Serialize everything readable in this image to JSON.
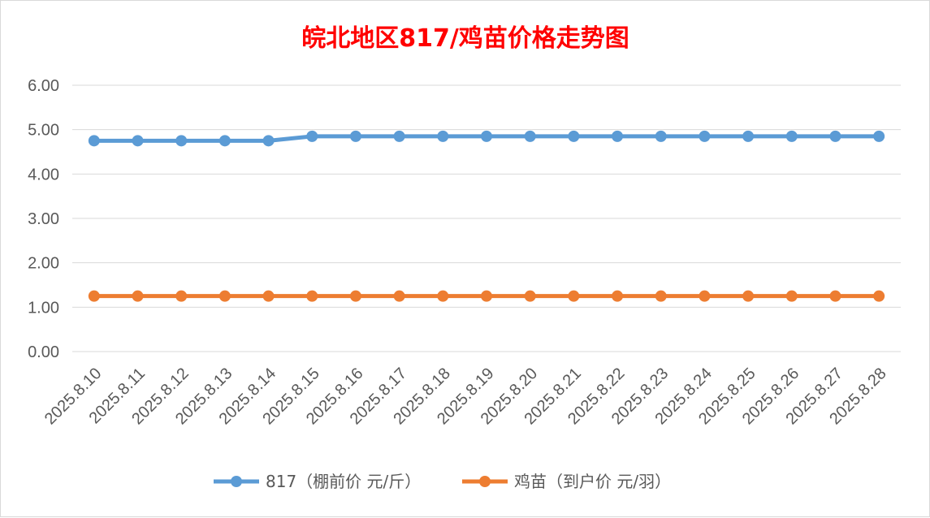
{
  "chart_data": {
    "type": "line",
    "title": "皖北地区817/鸡苗价格走势图",
    "xlabel": "",
    "ylabel": "",
    "categories": [
      "2025.8.10",
      "2025.8.11",
      "2025.8.12",
      "2025.8.13",
      "2025.8.14",
      "2025.8.15",
      "2025.8.16",
      "2025.8.17",
      "2025.8.18",
      "2025.8.19",
      "2025.8.20",
      "2025.8.21",
      "2025.8.22",
      "2025.8.23",
      "2025.8.24",
      "2025.8.25",
      "2025.8.26",
      "2025.8.27",
      "2025.8.28"
    ],
    "ylim": [
      0,
      6
    ],
    "yticks": [
      "0.00",
      "1.00",
      "2.00",
      "3.00",
      "4.00",
      "5.00",
      "6.00"
    ],
    "grid": true,
    "legend_position": "bottom",
    "series": [
      {
        "name": "817（棚前价 元/斤）",
        "color": "#5b9bd5",
        "values": [
          4.75,
          4.75,
          4.75,
          4.75,
          4.75,
          4.85,
          4.85,
          4.85,
          4.85,
          4.85,
          4.85,
          4.85,
          4.85,
          4.85,
          4.85,
          4.85,
          4.85,
          4.85,
          4.85
        ]
      },
      {
        "name": "鸡苗（到户价 元/羽）",
        "color": "#ed7d31",
        "values": [
          1.25,
          1.25,
          1.25,
          1.25,
          1.25,
          1.25,
          1.25,
          1.25,
          1.25,
          1.25,
          1.25,
          1.25,
          1.25,
          1.25,
          1.25,
          1.25,
          1.25,
          1.25,
          1.25
        ]
      }
    ]
  }
}
